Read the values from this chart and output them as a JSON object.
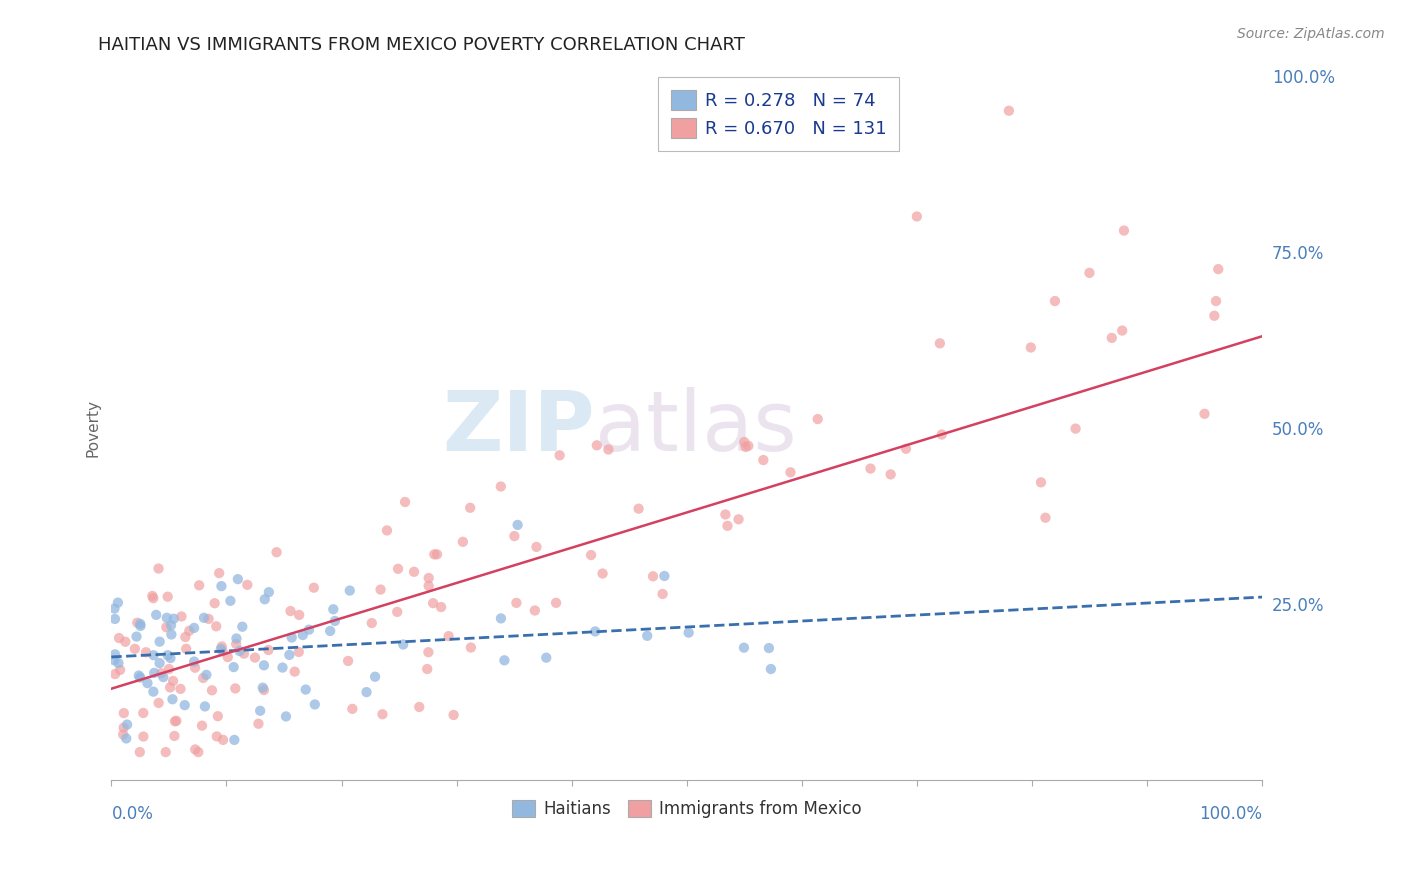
{
  "title": "HAITIAN VS IMMIGRANTS FROM MEXICO POVERTY CORRELATION CHART",
  "source": "Source: ZipAtlas.com",
  "ylabel": "Poverty",
  "legend_haitians": "Haitians",
  "legend_mexico": "Immigrants from Mexico",
  "r_haitians": 0.278,
  "n_haitians": 74,
  "r_mexico": 0.67,
  "n_mexico": 131,
  "blue_color": "#92b8e0",
  "pink_color": "#f0a0a0",
  "blue_line_color": "#3a6faf",
  "pink_line_color": "#d44060",
  "watermark_color": "#b8d4ec",
  "background_color": "#ffffff",
  "grid_color": "#d0d0d0",
  "title_color": "#222222",
  "axis_label_color": "#4a7fba",
  "right_label_color": "#4a7fba",
  "ylim": [
    0,
    1.0
  ],
  "xlim": [
    0,
    1.0
  ],
  "y_ticks": [
    0.0,
    0.25,
    0.5,
    0.75,
    1.0
  ],
  "y_tick_labels": [
    "",
    "25.0%",
    "50.0%",
    "75.0%",
    "100.0%"
  ],
  "pink_line_start_y": 0.13,
  "pink_line_slope": 0.5,
  "blue_line_start_y": 0.175,
  "blue_line_slope": 0.085
}
